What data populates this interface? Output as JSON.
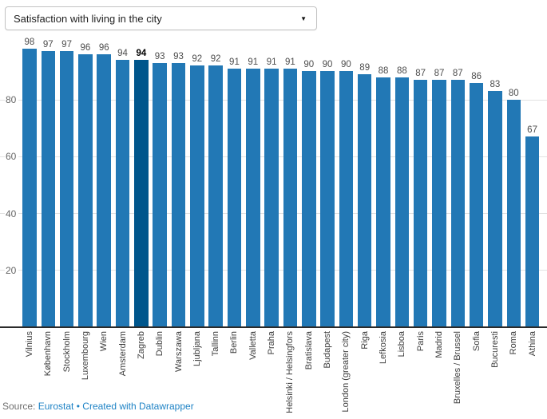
{
  "selector": {
    "value": "Satisfaction with living in the city",
    "caret_icon": "▼"
  },
  "chart_data": {
    "type": "bar",
    "title": "Satisfaction with living in the city",
    "categories": [
      "Vilnius",
      "København",
      "Stockholm",
      "Luxembourg",
      "Wien",
      "Amsterdam",
      "Zagreb",
      "Dublin",
      "Warszawa",
      "Ljubljana",
      "Tallinn",
      "Berlin",
      "Valletta",
      "Praha",
      "Helsinki / Helsingfors",
      "Bratislava",
      "Budapest",
      "London (greater city)",
      "Riga",
      "Lefkosia",
      "Lisboa",
      "Paris",
      "Madrid",
      "Bruxelles / Brussel",
      "Sofia",
      "Bucuresti",
      "Roma",
      "Athina"
    ],
    "values": [
      98,
      97,
      97,
      96,
      96,
      94,
      94,
      93,
      93,
      92,
      92,
      91,
      91,
      91,
      91,
      90,
      90,
      90,
      89,
      88,
      88,
      87,
      87,
      87,
      86,
      83,
      80,
      67
    ],
    "highlight_category": "Zagreb",
    "highlight_index": 6,
    "value_labels_shown": true,
    "yticks": [
      20,
      40,
      60,
      80
    ],
    "ylim": [
      0,
      100
    ],
    "grid": "horizontal",
    "legend_position": "none",
    "xlabel": "",
    "ylabel": ""
  },
  "footer": {
    "source_label": "Source:",
    "source_link": "Eurostat",
    "separator": "•",
    "credit_link": "Created with Datawrapper"
  },
  "colors": {
    "bar": "#2278b5",
    "bar_highlight": "#00568c",
    "grid": "#e2e2e2",
    "axis": "#2b2b2b",
    "value_label": "#4d4d4d",
    "value_label_highlight": "#000000",
    "x_label": "#3d3d3d",
    "y_label": "#666666",
    "footer_text": "#6e6e6e",
    "link": "#1d82c5"
  }
}
